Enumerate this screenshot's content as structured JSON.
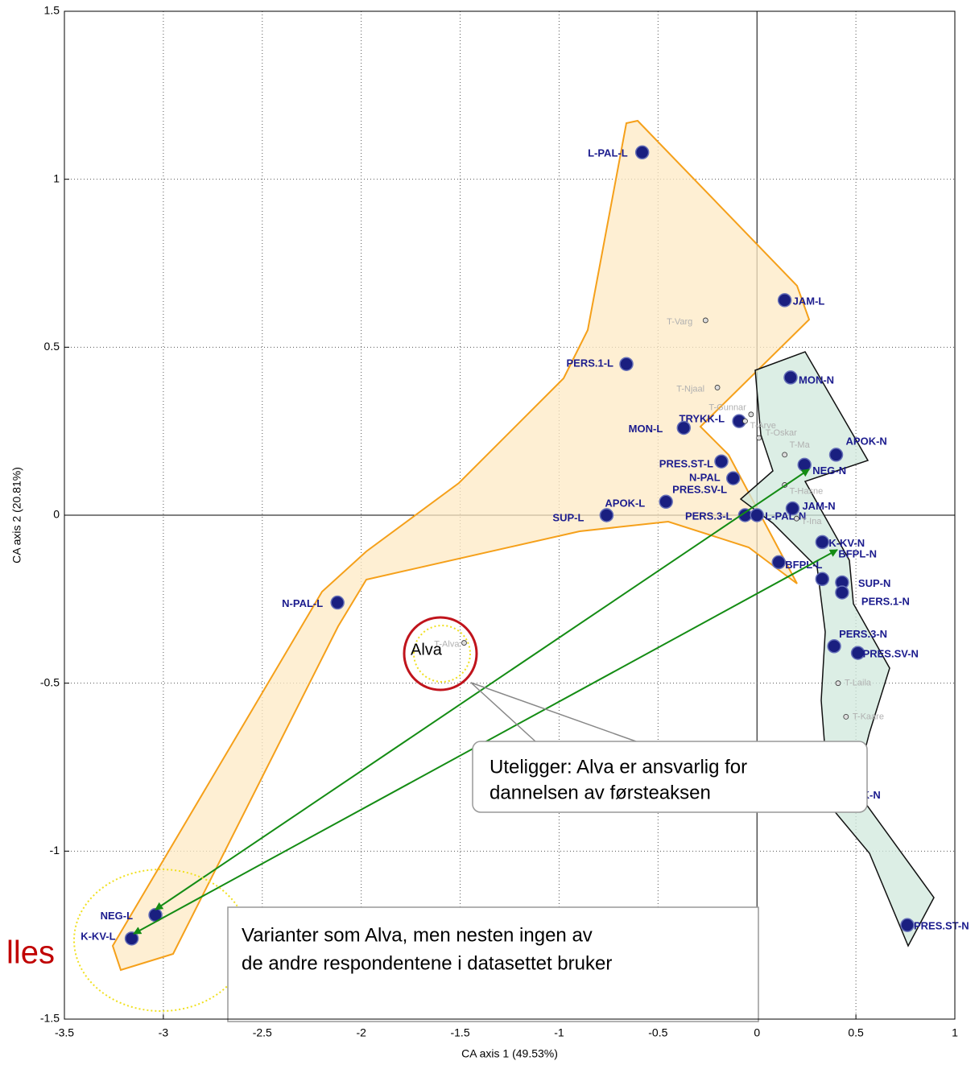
{
  "chart_data": {
    "type": "scatter",
    "xlabel": "CA axis 1 (49.53%)",
    "ylabel": "CA axis 2 (20.81%)",
    "xlim": [
      -3.5,
      1
    ],
    "ylim": [
      -1.5,
      1.5
    ],
    "xticks": [
      -3.5,
      -3,
      -2.5,
      -2,
      -1.5,
      -1,
      -0.5,
      0,
      0.5,
      1
    ],
    "yticks": [
      -1.5,
      -1,
      -0.5,
      0,
      0.5,
      1,
      1.5
    ],
    "grid": true,
    "series": [
      {
        "color": "#1a1f80",
        "labels": [
          "L-PAL-L",
          "JAM-L",
          "PERS.1-L",
          "MON-N",
          "TRYKK-L",
          "MON-L",
          "APOK-N",
          "PRES.ST-L",
          "NEG-N",
          "N-PAL",
          "PRES.SV-L",
          "APOK-L",
          "SUP-L",
          "JAM-N",
          "PERS.3-L",
          "L-PAL-N",
          "K-KV-N",
          "BFPL-L",
          "BFPL-N",
          "SUP-N",
          "PERS.1-N",
          "N-PAL-L",
          "PERS.3-N",
          "PRES.SV-N",
          "K-N",
          "NEG-L",
          "K-KV-L",
          "PRES.ST-N"
        ],
        "x": [
          -0.58,
          0.14,
          -0.66,
          0.17,
          -0.09,
          -0.37,
          0.4,
          -0.18,
          0.24,
          -0.12,
          -0.46,
          -0.76,
          -0.76,
          0.18,
          -0.06,
          0.0,
          0.33,
          0.11,
          0.33,
          0.43,
          0.43,
          -2.12,
          0.39,
          0.51,
          0.49,
          -3.04,
          -3.16,
          0.76
        ],
        "values": [
          1.08,
          0.64,
          0.45,
          0.41,
          0.28,
          0.26,
          0.18,
          0.16,
          0.15,
          0.11,
          0.04,
          0.0,
          0.0,
          0.02,
          0.0,
          0.0,
          -0.08,
          -0.14,
          -0.19,
          -0.2,
          -0.23,
          -0.26,
          -0.39,
          -0.41,
          -0.83,
          -1.19,
          -1.26,
          -1.22
        ]
      },
      {
        "color": "#dddddd",
        "labels": [
          "T-Varg",
          "T-Njaal",
          "T-Gunnar",
          "T-Arve",
          "T-Oskar",
          "T-Ma",
          "T-Hasne",
          "T-Ina",
          "T-Alva",
          "T-Laila",
          "T-Kaare"
        ],
        "x": [
          -0.26,
          -0.2,
          -0.03,
          -0.06,
          0.01,
          0.14,
          0.14,
          0.2,
          -1.48,
          0.41,
          0.45
        ],
        "values": [
          0.58,
          0.38,
          0.3,
          0.28,
          0.23,
          0.18,
          0.09,
          -0.01,
          -0.38,
          -0.5,
          -0.6
        ]
      }
    ],
    "annotations": [
      {
        "lines": [
          "Alva"
        ]
      },
      {
        "lines": [
          "Uteligger: Alva er ansvarlig for",
          "dannelsen av førsteaksen"
        ]
      },
      {
        "lines": [
          "Varianter som Alva, men nesten ingen av",
          "de andre respondentene i datasettet bruker"
        ]
      },
      {
        "lines": [
          "lles"
        ]
      }
    ]
  }
}
